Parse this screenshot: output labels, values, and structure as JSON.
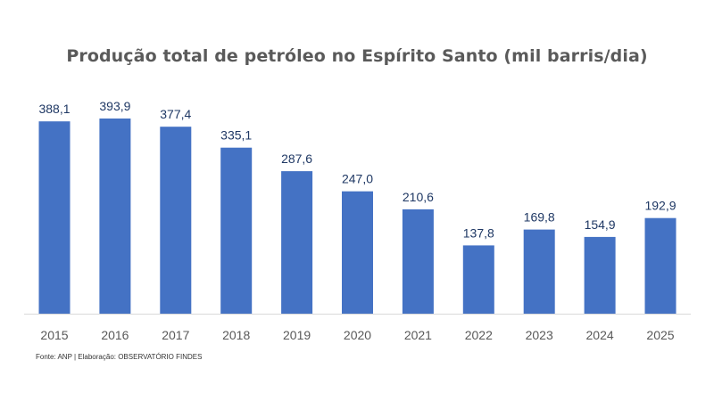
{
  "chart_data": {
    "type": "bar",
    "title": "Produção total de petróleo no Espírito Santo (mil barris/dia)",
    "categories": [
      "2015",
      "2016",
      "2017",
      "2018",
      "2019",
      "2020",
      "2021",
      "2022",
      "2023",
      "2024",
      "2025"
    ],
    "values": [
      388.1,
      393.9,
      377.4,
      335.1,
      287.6,
      247.0,
      210.6,
      137.8,
      169.8,
      154.9,
      192.9
    ],
    "value_labels": [
      "388,1",
      "393,9",
      "377,4",
      "335,1",
      "287,6",
      "247,0",
      "210,6",
      "137,8",
      "169,8",
      "154,9",
      "192,9"
    ],
    "xlabel": "",
    "ylabel": "",
    "ylim": [
      0,
      400
    ],
    "grid": false,
    "bar_color": "#4472c4",
    "label_color": "#1f3864",
    "axis_color": "#d9d9d9",
    "tick_label_color": "#595959"
  },
  "source_note": "Fonte: ANP | Elaboração: OBSERVATÓRIO FINDES"
}
